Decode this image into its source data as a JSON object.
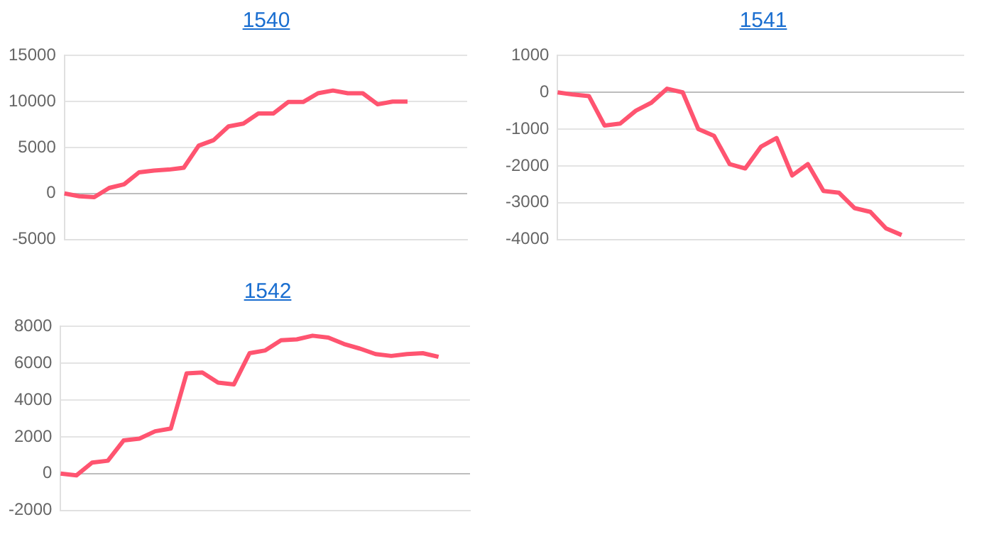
{
  "chart_data": [
    {
      "type": "line",
      "title": "1540",
      "categories": [
        null,
        null,
        null,
        null,
        null,
        null,
        null,
        null,
        null,
        null,
        null,
        null,
        null,
        null,
        null,
        null,
        null,
        null,
        null,
        null,
        null,
        null,
        null,
        null,
        null,
        null,
        null,
        null
      ],
      "series": [
        {
          "color": "#ff5470",
          "values": [
            0,
            -300,
            -400,
            600,
            1000,
            2300,
            2500,
            2600,
            2800,
            5200,
            5800,
            7300,
            7600,
            8700,
            8700,
            9950,
            9950,
            10900,
            11200,
            10900,
            10900,
            9700,
            10000,
            10000,
            null,
            null,
            null,
            null
          ]
        }
      ],
      "ylim": [
        -5000,
        15000
      ],
      "yticks": [
        -5000,
        0,
        5000,
        10000,
        15000
      ],
      "grid": "y",
      "tick_labels": "y",
      "marker": "none",
      "line_style": "solid",
      "legend": false
    },
    {
      "type": "line",
      "title": "1541",
      "categories": [
        null,
        null,
        null,
        null,
        null,
        null,
        null,
        null,
        null,
        null,
        null,
        null,
        null,
        null,
        null,
        null,
        null,
        null,
        null,
        null,
        null,
        null,
        null,
        null,
        null,
        null,
        null
      ],
      "series": [
        {
          "color": "#ff5470",
          "values": [
            0,
            -60,
            -100,
            -900,
            -850,
            -500,
            -280,
            100,
            0,
            -1000,
            -1180,
            -1950,
            -2070,
            -1480,
            -1240,
            -2260,
            -1950,
            -2680,
            -2730,
            -3150,
            -3250,
            -3700,
            -3880,
            null,
            null,
            null,
            null
          ]
        }
      ],
      "ylim": [
        -4000,
        1000
      ],
      "yticks": [
        -4000,
        -3000,
        -2000,
        -1000,
        0,
        1000
      ],
      "grid": "y",
      "tick_labels": "y",
      "marker": "none",
      "line_style": "solid",
      "legend": false
    },
    {
      "type": "line",
      "title": "1542",
      "categories": [
        null,
        null,
        null,
        null,
        null,
        null,
        null,
        null,
        null,
        null,
        null,
        null,
        null,
        null,
        null,
        null,
        null,
        null,
        null,
        null,
        null,
        null,
        null,
        null,
        null,
        null,
        null
      ],
      "series": [
        {
          "color": "#ff5470",
          "values": [
            0,
            -100,
            600,
            700,
            1800,
            1900,
            2300,
            2450,
            5450,
            5500,
            4950,
            4850,
            6550,
            6700,
            7250,
            7300,
            7500,
            7400,
            7050,
            6800,
            6500,
            6400,
            6500,
            6550,
            6350,
            null,
            null
          ]
        }
      ],
      "ylim": [
        -2000,
        8000
      ],
      "yticks": [
        -2000,
        0,
        2000,
        4000,
        6000,
        8000
      ],
      "grid": "y",
      "tick_labels": "y",
      "marker": "none",
      "line_style": "solid",
      "legend": false
    }
  ]
}
